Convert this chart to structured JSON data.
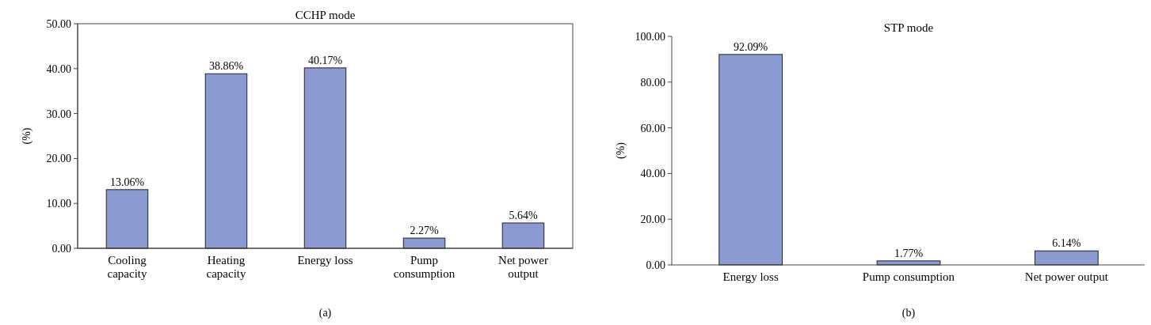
{
  "chart_data": [
    {
      "type": "bar",
      "title": "CCHP mode",
      "ylabel": "(%)",
      "categories": [
        "Cooling capacity",
        "Heating capacity",
        "Energy loss",
        "Pump consumption",
        "Net power output"
      ],
      "values": [
        13.06,
        38.86,
        40.17,
        2.27,
        5.64
      ],
      "value_labels": [
        "13.06%",
        "38.86%",
        "40.17%",
        "2.27%",
        "5.64%"
      ],
      "color": "#8b9ad0",
      "ylim": [
        0,
        50
      ],
      "yticks": [
        {
          "value": 0,
          "label": "0.00"
        },
        {
          "value": 10,
          "label": "10.00"
        },
        {
          "value": 20,
          "label": "20.00"
        },
        {
          "value": 30,
          "label": "30.00"
        },
        {
          "value": 40,
          "label": "40.00"
        },
        {
          "value": 50,
          "label": "50.00"
        }
      ],
      "annotations": [
        "(a)"
      ]
    },
    {
      "type": "bar",
      "title": "STP mode",
      "ylabel": "(%)",
      "categories": [
        "Energy loss",
        "Pump consumption",
        "Net power output"
      ],
      "values": [
        92.09,
        1.77,
        6.14
      ],
      "value_labels": [
        "92.09%",
        "1.77%",
        "6.14%"
      ],
      "color": "#8b9ad0",
      "ylim": [
        0,
        100
      ],
      "yticks": [
        {
          "value": 0,
          "label": "0.00"
        },
        {
          "value": 20,
          "label": "20.00"
        },
        {
          "value": 40,
          "label": "40.00"
        },
        {
          "value": 60,
          "label": "60.00"
        },
        {
          "value": 80,
          "label": "80.00"
        },
        {
          "value": 100,
          "label": "100.00"
        }
      ],
      "annotations": [
        "(b)"
      ]
    }
  ]
}
